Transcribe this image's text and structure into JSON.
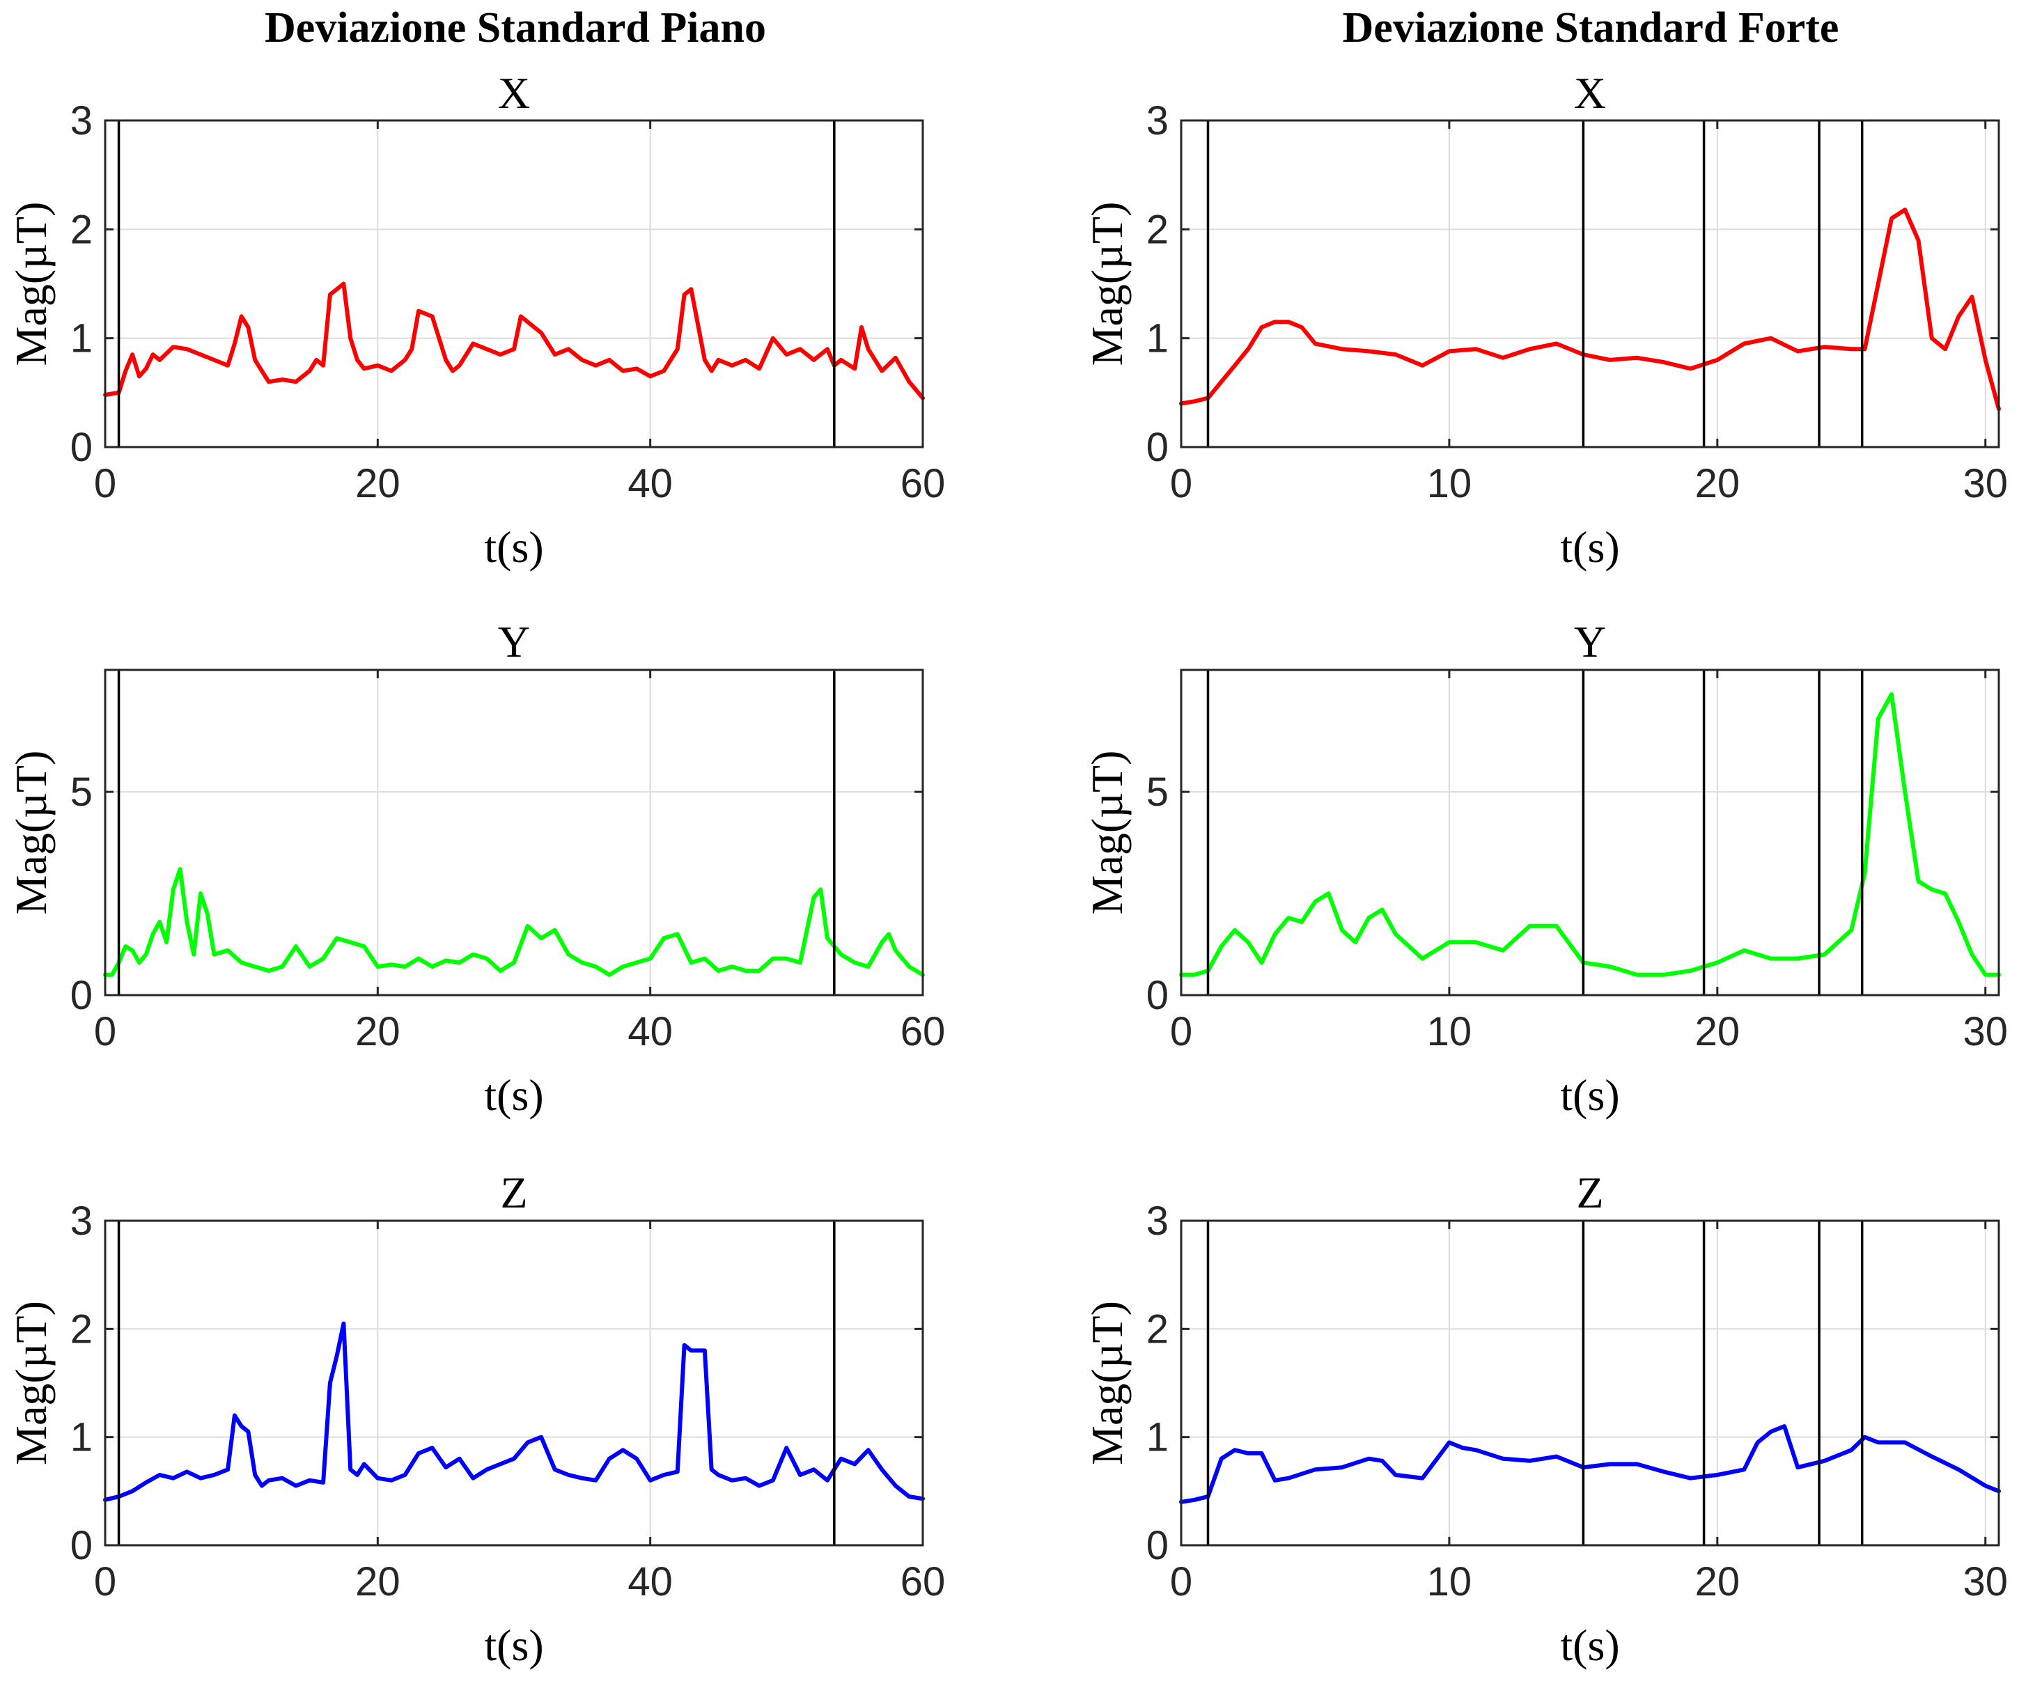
{
  "columns": [
    {
      "title": "Deviazione Standard Piano"
    },
    {
      "title": "Deviazione Standard Forte"
    }
  ],
  "chart_data": [
    {
      "type": "line",
      "column": 0,
      "title": "X",
      "xlabel": "t(s)",
      "ylabel": "Mag(µT)",
      "xlim": [
        0,
        60
      ],
      "ylim": [
        0,
        3
      ],
      "xticks": [
        0,
        20,
        40,
        60
      ],
      "yticks": [
        0,
        1,
        2,
        3
      ],
      "grid": true,
      "color": "#ff0000",
      "markers_x": [
        1,
        53.5
      ],
      "series": [
        {
          "x": [
            0,
            1,
            1.5,
            2,
            2.5,
            3,
            3.5,
            4,
            5,
            6,
            7,
            8,
            9,
            9.5,
            10,
            10.5,
            11,
            11.5,
            12,
            13,
            14,
            15,
            15.5,
            16,
            16.5,
            17,
            17.5,
            18,
            18.5,
            19,
            20,
            21,
            22,
            22.5,
            23,
            24,
            25,
            25.5,
            26,
            27,
            28,
            29,
            30,
            30.5,
            31,
            32,
            33,
            34,
            35,
            36,
            37,
            38,
            39,
            40,
            41,
            42,
            42.5,
            43,
            44,
            44.5,
            45,
            46,
            47,
            48,
            49,
            50,
            51,
            52,
            53,
            53.5,
            54,
            55,
            55.5,
            56,
            57,
            58,
            59,
            60
          ],
          "y": [
            0.48,
            0.5,
            0.7,
            0.85,
            0.65,
            0.72,
            0.85,
            0.8,
            0.92,
            0.9,
            0.85,
            0.8,
            0.75,
            0.95,
            1.2,
            1.1,
            0.8,
            0.7,
            0.6,
            0.62,
            0.6,
            0.7,
            0.8,
            0.75,
            1.4,
            1.45,
            1.5,
            1.0,
            0.8,
            0.72,
            0.75,
            0.7,
            0.8,
            0.9,
            1.25,
            1.2,
            0.8,
            0.7,
            0.75,
            0.95,
            0.9,
            0.85,
            0.9,
            1.2,
            1.15,
            1.05,
            0.85,
            0.9,
            0.8,
            0.75,
            0.8,
            0.7,
            0.72,
            0.65,
            0.7,
            0.9,
            1.4,
            1.45,
            0.8,
            0.7,
            0.8,
            0.75,
            0.8,
            0.72,
            1.0,
            0.85,
            0.9,
            0.8,
            0.9,
            0.75,
            0.8,
            0.72,
            1.1,
            0.9,
            0.7,
            0.82,
            0.6,
            0.45
          ]
        }
      ]
    },
    {
      "type": "line",
      "column": 1,
      "title": "X",
      "xlabel": "t(s)",
      "ylabel": "Mag(µT)",
      "xlim": [
        0,
        30.5
      ],
      "ylim": [
        0,
        3
      ],
      "xticks": [
        0,
        10,
        20,
        30
      ],
      "yticks": [
        0,
        1,
        2,
        3
      ],
      "grid": true,
      "color": "#ff0000",
      "markers_x": [
        1,
        15,
        19.5,
        23.8,
        25.4
      ],
      "series": [
        {
          "x": [
            0,
            0.5,
            1,
            1.5,
            2,
            2.5,
            3,
            3.5,
            4,
            4.5,
            5,
            6,
            7,
            8,
            9,
            10,
            11,
            12,
            13,
            14,
            15,
            16,
            17,
            18,
            19,
            20,
            21,
            22,
            23,
            24,
            25,
            25.5,
            26,
            26.5,
            27,
            27.5,
            28,
            28.5,
            29,
            29.5,
            30,
            30.5
          ],
          "y": [
            0.4,
            0.42,
            0.45,
            0.6,
            0.75,
            0.9,
            1.1,
            1.15,
            1.15,
            1.1,
            0.95,
            0.9,
            0.88,
            0.85,
            0.75,
            0.88,
            0.9,
            0.82,
            0.9,
            0.95,
            0.85,
            0.8,
            0.82,
            0.78,
            0.72,
            0.8,
            0.95,
            1.0,
            0.88,
            0.92,
            0.9,
            0.9,
            1.5,
            2.1,
            2.18,
            1.9,
            1.0,
            0.9,
            1.2,
            1.38,
            0.8,
            0.35
          ]
        }
      ]
    },
    {
      "type": "line",
      "column": 0,
      "title": "Y",
      "xlabel": "t(s)",
      "ylabel": "Mag(µT)",
      "xlim": [
        0,
        60
      ],
      "ylim": [
        0,
        8
      ],
      "xticks": [
        0,
        20,
        40,
        60
      ],
      "yticks": [
        0,
        5
      ],
      "grid": true,
      "color": "#00ff00",
      "markers_x": [
        1,
        53.5
      ],
      "series": [
        {
          "x": [
            0,
            0.5,
            1,
            1.5,
            2,
            2.5,
            3,
            3.5,
            4,
            4.5,
            5,
            5.5,
            6,
            6.5,
            7,
            7.5,
            8,
            9,
            10,
            11,
            12,
            13,
            14,
            15,
            16,
            17,
            18,
            19,
            20,
            21,
            22,
            23,
            24,
            25,
            26,
            27,
            28,
            29,
            30,
            31,
            32,
            33,
            34,
            35,
            36,
            37,
            38,
            39,
            40,
            41,
            42,
            43,
            44,
            45,
            46,
            47,
            48,
            49,
            50,
            51,
            52,
            52.5,
            53,
            54,
            55,
            56,
            57,
            57.5,
            58,
            59,
            60
          ],
          "y": [
            0.5,
            0.5,
            0.8,
            1.2,
            1.1,
            0.8,
            1.0,
            1.5,
            1.8,
            1.3,
            2.6,
            3.1,
            1.8,
            1.0,
            2.5,
            2.0,
            1.0,
            1.1,
            0.8,
            0.7,
            0.6,
            0.7,
            1.2,
            0.7,
            0.9,
            1.4,
            1.3,
            1.2,
            0.7,
            0.75,
            0.7,
            0.9,
            0.7,
            0.85,
            0.8,
            1.0,
            0.9,
            0.6,
            0.8,
            1.7,
            1.4,
            1.6,
            1.0,
            0.8,
            0.7,
            0.5,
            0.7,
            0.8,
            0.9,
            1.4,
            1.5,
            0.8,
            0.9,
            0.6,
            0.7,
            0.6,
            0.6,
            0.9,
            0.9,
            0.8,
            2.4,
            2.6,
            1.4,
            1.0,
            0.8,
            0.7,
            1.3,
            1.5,
            1.1,
            0.7,
            0.5
          ]
        }
      ]
    },
    {
      "type": "line",
      "column": 1,
      "title": "Y",
      "xlabel": "t(s)",
      "ylabel": "Mag(µT)",
      "xlim": [
        0,
        30.5
      ],
      "ylim": [
        0,
        8
      ],
      "xticks": [
        0,
        10,
        20,
        30
      ],
      "yticks": [
        0,
        5
      ],
      "grid": true,
      "color": "#00ff00",
      "markers_x": [
        1,
        15,
        19.5,
        23.8,
        25.4
      ],
      "series": [
        {
          "x": [
            0,
            0.5,
            1,
            1.5,
            2,
            2.5,
            3,
            3.5,
            4,
            4.5,
            5,
            5.5,
            6,
            6.5,
            7,
            7.5,
            8,
            8.5,
            9,
            10,
            11,
            12,
            13,
            14,
            15,
            16,
            17,
            18,
            19,
            20,
            21,
            22,
            23,
            24,
            25,
            25.5,
            26,
            26.5,
            27,
            27.5,
            28,
            28.5,
            29,
            29.5,
            30,
            30.5
          ],
          "y": [
            0.5,
            0.5,
            0.6,
            1.2,
            1.6,
            1.3,
            0.8,
            1.5,
            1.9,
            1.8,
            2.3,
            2.5,
            1.6,
            1.3,
            1.9,
            2.1,
            1.5,
            1.2,
            0.9,
            1.3,
            1.3,
            1.1,
            1.7,
            1.7,
            0.8,
            0.7,
            0.5,
            0.5,
            0.6,
            0.8,
            1.1,
            0.9,
            0.9,
            1.0,
            1.6,
            3.0,
            6.8,
            7.4,
            5.0,
            2.8,
            2.6,
            2.5,
            1.8,
            1.0,
            0.5,
            0.5
          ]
        }
      ]
    },
    {
      "type": "line",
      "column": 0,
      "title": "Z",
      "xlabel": "t(s)",
      "ylabel": "Mag(µT)",
      "xlim": [
        0,
        60
      ],
      "ylim": [
        0,
        3
      ],
      "xticks": [
        0,
        20,
        40,
        60
      ],
      "yticks": [
        0,
        1,
        2,
        3
      ],
      "grid": true,
      "color": "#0000ff",
      "markers_x": [
        1,
        53.5
      ],
      "series": [
        {
          "x": [
            0,
            1,
            2,
            3,
            4,
            5,
            6,
            7,
            8,
            9,
            9.5,
            10,
            10.5,
            11,
            11.5,
            12,
            13,
            14,
            15,
            16,
            16.5,
            17,
            17.5,
            18,
            18.5,
            19,
            20,
            21,
            22,
            23,
            24,
            25,
            26,
            27,
            28,
            29,
            30,
            31,
            32,
            33,
            34,
            35,
            36,
            37,
            38,
            39,
            40,
            41,
            42,
            42.5,
            43,
            44,
            44.5,
            45,
            46,
            47,
            48,
            49,
            50,
            51,
            52,
            53,
            54,
            55,
            56,
            57,
            58,
            59,
            60
          ],
          "y": [
            0.42,
            0.45,
            0.5,
            0.58,
            0.65,
            0.62,
            0.68,
            0.62,
            0.65,
            0.7,
            1.2,
            1.1,
            1.05,
            0.65,
            0.55,
            0.6,
            0.62,
            0.55,
            0.6,
            0.58,
            1.5,
            1.75,
            2.05,
            0.7,
            0.65,
            0.75,
            0.62,
            0.6,
            0.65,
            0.85,
            0.9,
            0.72,
            0.8,
            0.62,
            0.7,
            0.75,
            0.8,
            0.95,
            1.0,
            0.7,
            0.65,
            0.62,
            0.6,
            0.8,
            0.88,
            0.8,
            0.6,
            0.65,
            0.68,
            1.85,
            1.8,
            1.8,
            0.7,
            0.65,
            0.6,
            0.62,
            0.55,
            0.6,
            0.9,
            0.65,
            0.7,
            0.6,
            0.8,
            0.75,
            0.88,
            0.7,
            0.55,
            0.45,
            0.43
          ]
        }
      ]
    },
    {
      "type": "line",
      "column": 1,
      "title": "Z",
      "xlabel": "t(s)",
      "ylabel": "Mag(µT)",
      "xlim": [
        0,
        30.5
      ],
      "ylim": [
        0,
        3
      ],
      "xticks": [
        0,
        10,
        20,
        30
      ],
      "yticks": [
        0,
        1,
        2,
        3
      ],
      "grid": true,
      "color": "#0000ff",
      "markers_x": [
        1,
        15,
        19.5,
        23.8,
        25.4
      ],
      "series": [
        {
          "x": [
            0,
            0.5,
            1,
            1.5,
            2,
            2.5,
            3,
            3.5,
            4,
            5,
            6,
            7,
            7.5,
            8,
            9,
            10,
            10.5,
            11,
            12,
            13,
            14,
            15,
            16,
            17,
            18,
            19,
            20,
            21,
            21.5,
            22,
            22.5,
            23,
            24,
            25,
            25.5,
            26,
            27,
            28,
            29,
            30,
            30.5
          ],
          "y": [
            0.4,
            0.42,
            0.45,
            0.8,
            0.88,
            0.85,
            0.85,
            0.6,
            0.62,
            0.7,
            0.72,
            0.8,
            0.78,
            0.65,
            0.62,
            0.95,
            0.9,
            0.88,
            0.8,
            0.78,
            0.82,
            0.72,
            0.75,
            0.75,
            0.68,
            0.62,
            0.65,
            0.7,
            0.95,
            1.05,
            1.1,
            0.72,
            0.78,
            0.88,
            1.0,
            0.95,
            0.95,
            0.82,
            0.7,
            0.55,
            0.5
          ]
        }
      ]
    }
  ]
}
